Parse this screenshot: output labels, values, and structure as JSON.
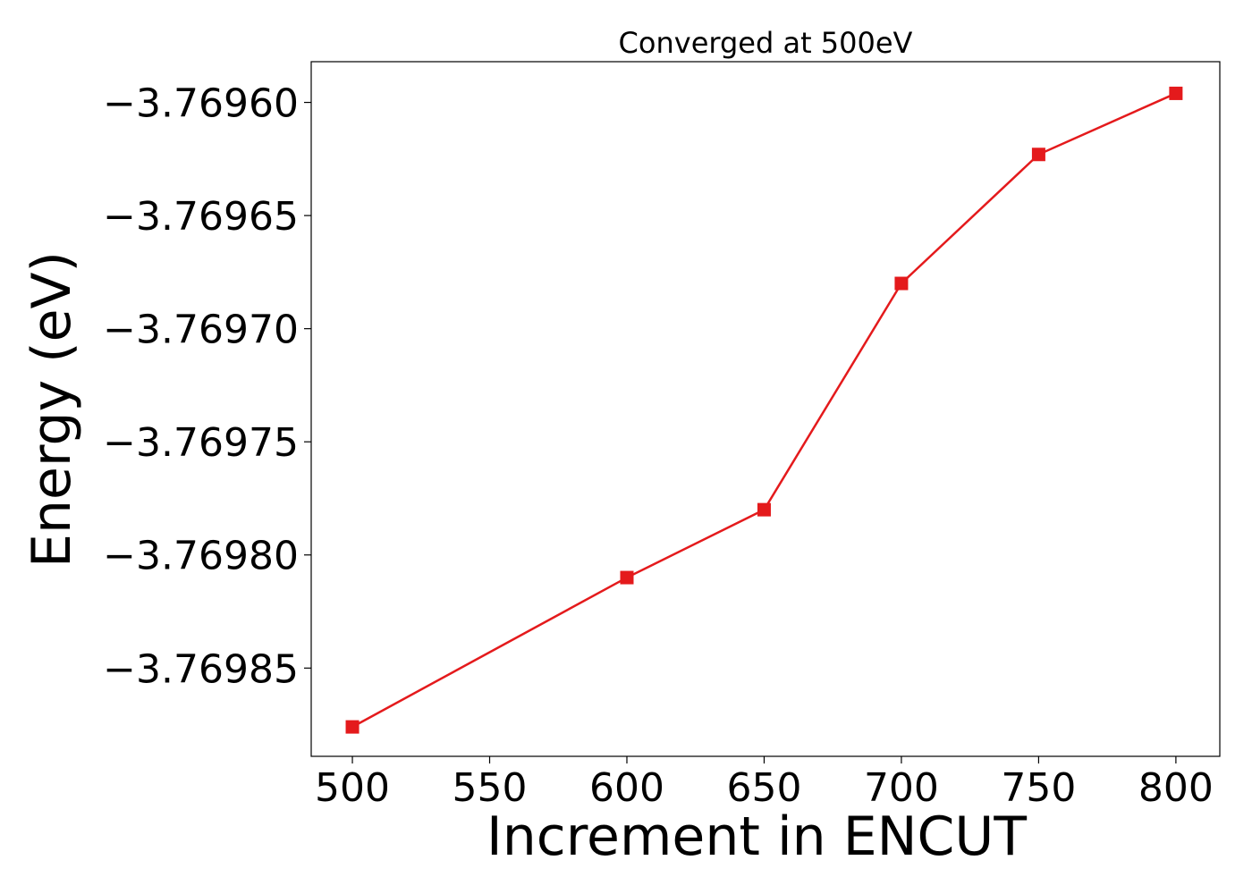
{
  "chart_data": {
    "type": "line",
    "title": "Converged at 500eV",
    "xlabel": "Increment in ENCUT",
    "ylabel": "Energy (eV)",
    "x": [
      500,
      600,
      650,
      700,
      750,
      800
    ],
    "series": [
      {
        "values": [
          -3.769876,
          -3.76981,
          -3.76978,
          -3.76968,
          -3.769623,
          -3.769596
        ],
        "color": "#e41a1c",
        "marker": "square"
      }
    ],
    "xlim": [
      485,
      816
    ],
    "ylim": [
      -3.769889,
      -3.769582
    ],
    "x_ticks": [
      500,
      550,
      600,
      650,
      700,
      750,
      800
    ],
    "x_tick_labels": [
      "500",
      "550",
      "600",
      "650",
      "700",
      "750",
      "800"
    ],
    "y_ticks": [
      -3.7696,
      -3.76965,
      -3.7697,
      -3.76975,
      -3.7698,
      -3.76985
    ],
    "y_tick_labels": [
      "−3.76960",
      "−3.76965",
      "−3.76970",
      "−3.76975",
      "−3.76980",
      "−3.76985"
    ],
    "grid": false,
    "legend": "none"
  }
}
